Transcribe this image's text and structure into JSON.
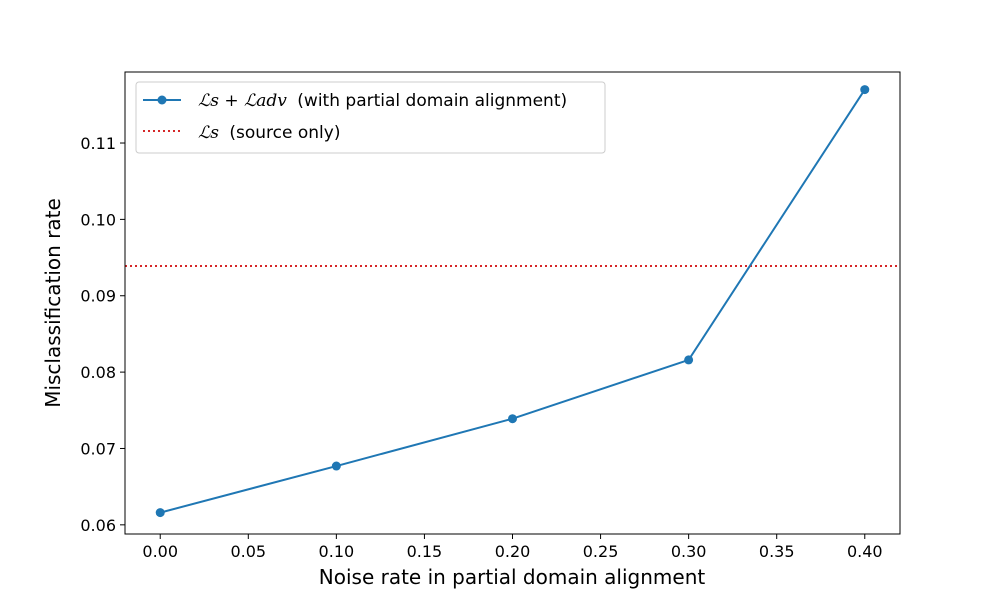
{
  "chart_data": {
    "type": "line",
    "xlabel": "Noise rate in partial domain alignment",
    "ylabel": "Misclassification rate",
    "xlim": [
      -0.02,
      0.42
    ],
    "ylim": [
      0.0588,
      0.1193
    ],
    "x_ticks": [
      0.0,
      0.05,
      0.1,
      0.15,
      0.2,
      0.25,
      0.3,
      0.35,
      0.4
    ],
    "x_tick_labels": [
      "0.00",
      "0.05",
      "0.10",
      "0.15",
      "0.20",
      "0.25",
      "0.30",
      "0.35",
      "0.40"
    ],
    "y_ticks": [
      0.06,
      0.07,
      0.08,
      0.09,
      0.1,
      0.11
    ],
    "y_tick_labels": [
      "0.06",
      "0.07",
      "0.08",
      "0.09",
      "0.10",
      "0.11"
    ],
    "grid": false,
    "legend_placement": "upper-left",
    "series": [
      {
        "name": "ℒ_s + ℒ_adv (with partial domain alignment)",
        "legend_math": "ℒs + ℒadv",
        "legend_text": "(with partial domain alignment)",
        "style": "solid-line-with-circle-markers",
        "color": "#1f77b4",
        "x": [
          0.0,
          0.1,
          0.2,
          0.3,
          0.4
        ],
        "y": [
          0.0616,
          0.0677,
          0.0739,
          0.0816,
          0.117
        ]
      },
      {
        "name": "ℒ_s (source only)",
        "legend_math": "ℒs",
        "legend_text": "(source only)",
        "style": "dotted-horizontal-line",
        "color": "#d62728",
        "y": 0.0939
      }
    ]
  }
}
